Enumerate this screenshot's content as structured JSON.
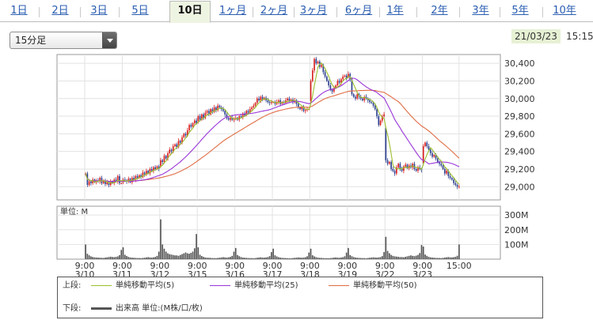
{
  "tabs": [
    {
      "label": "1日",
      "active": false
    },
    {
      "label": "2日",
      "active": false
    },
    {
      "label": "3日",
      "active": false
    },
    {
      "label": "5日",
      "active": false
    },
    {
      "label": "10日",
      "active": true
    },
    {
      "label": "1ヶ月",
      "active": false
    },
    {
      "label": "2ヶ月",
      "active": false
    },
    {
      "label": "3ヶ月",
      "active": false
    },
    {
      "label": "6ヶ月",
      "active": false
    },
    {
      "label": "1年",
      "active": false
    },
    {
      "label": "2年",
      "active": false
    },
    {
      "label": "3年",
      "active": false
    },
    {
      "label": "5年",
      "active": false
    },
    {
      "label": "10年",
      "active": false
    }
  ],
  "interval_select": {
    "value": "15分足"
  },
  "timestamp": {
    "date": "21/03/23",
    "time": "15:15"
  },
  "legend": {
    "upper_label": "上段:",
    "lower_label": "下段:",
    "ma5": "単純移動平均(5)",
    "ma25": "単純移動平均(25)",
    "ma50": "単純移動平均(50)",
    "volume": "出来高 単位:(M株/口/枚)"
  },
  "colors": {
    "up": "#d81e1e",
    "down": "#2b3f8f",
    "ma5": "#9bbf2e",
    "ma25": "#9a35d9",
    "ma50": "#e06d45",
    "volume": "#555555",
    "tab_active_bg": "#eef4e2",
    "date_badge_bg": "#e6f1d4"
  },
  "chart_data": [
    {
      "type": "candlestick",
      "title": "",
      "ylim": [
        28850,
        30500
      ],
      "y_ticks": [
        29000,
        29200,
        29400,
        29600,
        29800,
        30000,
        30200,
        30400
      ],
      "y_tick_labels": [
        "29,000",
        "29,200",
        "29,400",
        "29,600",
        "29,800",
        "30,000",
        "30,200",
        "30,400"
      ],
      "x_tick_labels": [
        {
          "time": "9:00",
          "date": "3/10"
        },
        {
          "time": "9:00",
          "date": "3/11"
        },
        {
          "time": "9:00",
          "date": "3/12"
        },
        {
          "time": "9:00",
          "date": "3/15"
        },
        {
          "time": "9:00",
          "date": "3/16"
        },
        {
          "time": "9:00",
          "date": "3/17"
        },
        {
          "time": "9:00",
          "date": "3/18"
        },
        {
          "time": "9:00",
          "date": "3/19"
        },
        {
          "time": "9:00",
          "date": "3/22"
        },
        {
          "time": "9:00",
          "date": "3/23"
        },
        {
          "time": "15:00",
          "date": ""
        }
      ],
      "grid": true,
      "days": [
        "3/10",
        "3/11",
        "3/12",
        "3/15",
        "3/16",
        "3/17",
        "3/18",
        "3/19",
        "3/22",
        "3/23"
      ],
      "closes_15min": [
        [
          29150,
          29020,
          29060,
          29040,
          29080,
          29050,
          29070,
          29060,
          29100,
          29040,
          29070,
          29030,
          29050,
          29020,
          29060,
          29040,
          29080,
          29060,
          29120,
          29040,
          29040
        ],
        [
          29080,
          29070,
          29060,
          29090,
          29050,
          29100,
          29080,
          29120,
          29100,
          29130,
          29110,
          29160,
          29140,
          29180,
          29150,
          29200,
          29180,
          29220,
          29200,
          29230,
          29200
        ],
        [
          29300,
          29280,
          29350,
          29320,
          29380,
          29420,
          29400,
          29460,
          29480,
          29450,
          29520,
          29500,
          29560,
          29600,
          29580,
          29640,
          29700,
          29680,
          29720,
          29750,
          29720
        ],
        [
          29800,
          29760,
          29820,
          29780,
          29840,
          29860,
          29820,
          29880,
          29850,
          29900,
          29870,
          29920,
          29900,
          29880,
          29860,
          29820,
          29780,
          29760,
          29780,
          29760,
          29770
        ],
        [
          29780,
          29760,
          29800,
          29790,
          29830,
          29810,
          29860,
          29840,
          29880,
          29900,
          29920,
          29950,
          30000,
          29980,
          30020,
          29990,
          30010,
          29980,
          29960,
          29950,
          29960
        ],
        [
          29960,
          29940,
          29960,
          29980,
          29940,
          29960,
          29950,
          29980,
          30000,
          29970,
          29990,
          29960,
          29980,
          29940,
          29900,
          29880,
          29900,
          29860,
          29870,
          29880,
          29880
        ],
        [
          30200,
          30320,
          30450,
          30400,
          30420,
          30360,
          30380,
          30300,
          30250,
          30200,
          30150,
          30100,
          30080,
          30120,
          30150,
          30200,
          30180,
          30220,
          30250,
          30260,
          30230
        ],
        [
          30280,
          30220,
          30050,
          30020,
          30000,
          30050,
          30020,
          30000,
          29980,
          30020,
          30000,
          29980,
          29960,
          29950,
          29920,
          29880,
          29800,
          29700,
          29750,
          29800,
          29820
        ],
        [
          29300,
          29260,
          29280,
          29200,
          29180,
          29150,
          29220,
          29260,
          29200,
          29180,
          29230,
          29250,
          29210,
          29240,
          29220,
          29260,
          29200,
          29180,
          29220,
          29200,
          29190
        ],
        [
          29460,
          29500,
          29460,
          29420,
          29380,
          29340,
          29360,
          29320,
          29280,
          29260,
          29240,
          29200,
          29150,
          29180,
          29120,
          29100,
          29080,
          29040,
          29020,
          29000,
          29000
        ]
      ],
      "moving_averages": [
        "ma5",
        "ma25",
        "ma50"
      ]
    },
    {
      "type": "bar",
      "title": "",
      "unit_label": "単位: M",
      "ylim": [
        0,
        360
      ],
      "y_ticks": [
        100,
        200,
        300
      ],
      "y_tick_labels": [
        "100M",
        "200M",
        "300M"
      ],
      "grid": true,
      "volume_profile_15min": [
        95,
        35,
        25,
        18,
        14,
        12,
        11,
        10,
        9,
        9,
        8,
        10,
        12,
        14,
        16,
        14,
        13,
        15,
        18,
        26,
        60
      ],
      "day_scale": [
        1.05,
        0.85,
        2.85,
        0.85,
        0.8,
        0.75,
        0.75,
        0.8,
        1.6,
        0.9
      ],
      "last_bar_value": 100
    }
  ]
}
